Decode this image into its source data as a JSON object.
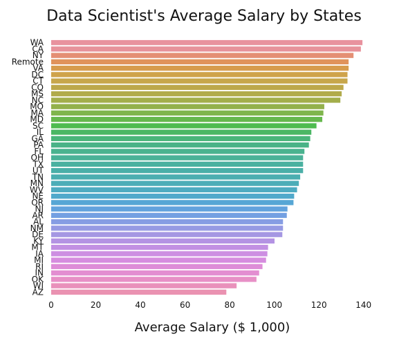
{
  "chart_data": {
    "type": "bar",
    "orientation": "horizontal",
    "title": "Data Scientist's Average Salary by States",
    "xlabel": "Average Salary ($ 1,000)",
    "ylabel": "",
    "xlim": [
      0,
      150
    ],
    "xticks": [
      "0",
      "20",
      "40",
      "60",
      "80",
      "100",
      "120",
      "140"
    ],
    "grid": false,
    "categories": [
      "WA",
      "CA",
      "NY",
      "Remote",
      "VA",
      "DC",
      "CT",
      "CO",
      "MS",
      "NC",
      "MO",
      "MA",
      "MD",
      "SC",
      "IL",
      "GA",
      "PA",
      "FL",
      "OH",
      "TX",
      "UT",
      "TN",
      "MN",
      "WV",
      "NE",
      "OR",
      "NJ",
      "AR",
      "AL",
      "NM",
      "DE",
      "KY",
      "MT",
      "IA",
      "MI",
      "RI",
      "IN",
      "OK",
      "WI",
      "AZ"
    ],
    "values": [
      139.5,
      138.8,
      135.5,
      133.3,
      133.3,
      132.8,
      132.8,
      131.0,
      130.2,
      129.6,
      122.4,
      122.0,
      121.5,
      118.9,
      116.6,
      116.1,
      115.5,
      113.5,
      112.9,
      112.9,
      112.9,
      111.6,
      111.0,
      110.2,
      108.9,
      108.6,
      105.9,
      105.6,
      103.9,
      103.9,
      103.6,
      100.1,
      97.2,
      96.9,
      96.3,
      94.7,
      93.2,
      92.0,
      83.1,
      78.5
    ],
    "colors": [
      "#e8929e",
      "#e7929a",
      "#e48f74",
      "#e0935b",
      "#d79c4d",
      "#cfa34b",
      "#c7a64b",
      "#bda84b",
      "#b1ab4b",
      "#a3ae4b",
      "#93b14b",
      "#7fb54c",
      "#66b84d",
      "#4ebb4f",
      "#4bb764",
      "#4ab57a",
      "#4ab387",
      "#4ab38f",
      "#4ab298",
      "#4ab1a0",
      "#4aafa8",
      "#4baeb0",
      "#4cadb8",
      "#4eabc1",
      "#50a9cb",
      "#56a6d5",
      "#62a2dd",
      "#73a0e2",
      "#869de3",
      "#969ae3",
      "#a597e3",
      "#b493e3",
      "#c290e3",
      "#cd8fe2",
      "#d68ddf",
      "#de8dd8",
      "#e38ed1",
      "#e790c6",
      "#e991bb",
      "#ea92b1"
    ]
  }
}
